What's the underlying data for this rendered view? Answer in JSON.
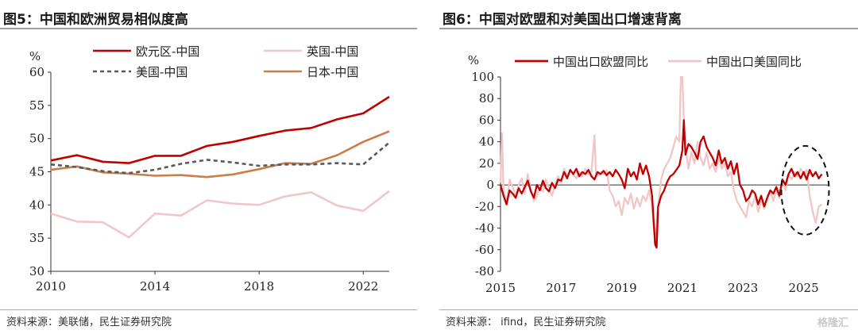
{
  "left": {
    "title": "图5：中国和欧洲贸易相似度高",
    "source": "资料来源：美联储，民生证券研究院"
  },
  "right": {
    "title": "图6：中国对欧盟和对美国出口增速背离",
    "source": "资料来源： ifind，民生证券研究院"
  },
  "watermark": "格隆汇",
  "chart_data": [
    {
      "type": "line",
      "ylabel": "%",
      "ylim": [
        30,
        60
      ],
      "yticks": [
        30,
        35,
        40,
        45,
        50,
        55,
        60
      ],
      "xlim": [
        2010,
        2023
      ],
      "xticks": [
        2010,
        2014,
        2018,
        2022
      ],
      "x": [
        2010,
        2011,
        2012,
        2013,
        2014,
        2015,
        2016,
        2017,
        2018,
        2019,
        2020,
        2021,
        2022,
        2023
      ],
      "legend": "top",
      "series": [
        {
          "name": "欧元区-中国",
          "color": "#c00000",
          "dash": false,
          "values": [
            46.7,
            47.5,
            46.5,
            46.3,
            47.4,
            47.4,
            48.9,
            49.5,
            50.4,
            51.2,
            51.6,
            52.9,
            53.8,
            56.3
          ]
        },
        {
          "name": "英国-中国",
          "color": "#f2c6c6",
          "dash": false,
          "values": [
            38.7,
            37.5,
            37.4,
            35.1,
            38.7,
            38.4,
            40.7,
            40.2,
            40.0,
            41.3,
            41.9,
            39.9,
            39.1,
            42.1
          ]
        },
        {
          "name": "美国-中国",
          "color": "#595959",
          "dash": true,
          "values": [
            46.1,
            45.7,
            45.1,
            44.8,
            45.3,
            46.2,
            46.8,
            46.4,
            45.9,
            46.1,
            46.1,
            46.3,
            46.1,
            49.4
          ]
        },
        {
          "name": "日本-中国",
          "color": "#c97e4a",
          "dash": false,
          "values": [
            45.3,
            45.8,
            44.9,
            44.7,
            44.4,
            44.5,
            44.2,
            44.6,
            45.4,
            46.3,
            46.2,
            47.5,
            49.5,
            51.1
          ]
        }
      ]
    },
    {
      "type": "line",
      "ylabel": "%",
      "ylim": [
        -80,
        100
      ],
      "yticks": [
        -80,
        -60,
        -40,
        -20,
        0,
        20,
        40,
        60,
        80,
        100
      ],
      "xlim": [
        2015,
        2025.85
      ],
      "xticks": [
        2015,
        2017,
        2019,
        2021,
        2023,
        2025
      ],
      "legend": "top",
      "annotation": "dashed-ellipse-around-2025",
      "series": [
        {
          "name": "中国出口欧盟同比",
          "color": "#c00000",
          "points": [
            [
              2015.0,
              0
            ],
            [
              2015.1,
              -10
            ],
            [
              2015.2,
              -18
            ],
            [
              2015.3,
              -5
            ],
            [
              2015.4,
              -8
            ],
            [
              2015.5,
              -12
            ],
            [
              2015.6,
              -3
            ],
            [
              2015.7,
              -8
            ],
            [
              2015.8,
              -2
            ],
            [
              2015.9,
              4
            ],
            [
              2016.0,
              -6
            ],
            [
              2016.1,
              -12
            ],
            [
              2016.2,
              0
            ],
            [
              2016.3,
              -5
            ],
            [
              2016.4,
              4
            ],
            [
              2016.5,
              -3
            ],
            [
              2016.6,
              -6
            ],
            [
              2016.7,
              2
            ],
            [
              2016.8,
              -3
            ],
            [
              2016.9,
              5
            ],
            [
              2017.0,
              4
            ],
            [
              2017.1,
              12
            ],
            [
              2017.2,
              6
            ],
            [
              2017.3,
              14
            ],
            [
              2017.4,
              10
            ],
            [
              2017.5,
              15
            ],
            [
              2017.6,
              8
            ],
            [
              2017.7,
              12
            ],
            [
              2017.8,
              10
            ],
            [
              2017.9,
              14
            ],
            [
              2018.0,
              8
            ],
            [
              2018.1,
              5
            ],
            [
              2018.2,
              12
            ],
            [
              2018.3,
              10
            ],
            [
              2018.4,
              13
            ],
            [
              2018.5,
              9
            ],
            [
              2018.6,
              12
            ],
            [
              2018.7,
              8
            ],
            [
              2018.8,
              14
            ],
            [
              2018.9,
              10
            ],
            [
              2019.0,
              5
            ],
            [
              2019.1,
              -3
            ],
            [
              2019.2,
              15
            ],
            [
              2019.3,
              8
            ],
            [
              2019.4,
              12
            ],
            [
              2019.5,
              5
            ],
            [
              2019.6,
              20
            ],
            [
              2019.7,
              10
            ],
            [
              2019.8,
              18
            ],
            [
              2019.9,
              8
            ],
            [
              2020.0,
              -10
            ],
            [
              2020.1,
              -55
            ],
            [
              2020.15,
              -58
            ],
            [
              2020.2,
              -20
            ],
            [
              2020.3,
              -10
            ],
            [
              2020.4,
              -5
            ],
            [
              2020.5,
              3
            ],
            [
              2020.6,
              8
            ],
            [
              2020.7,
              10
            ],
            [
              2020.8,
              14
            ],
            [
              2020.9,
              18
            ],
            [
              2021.0,
              32
            ],
            [
              2021.05,
              60
            ],
            [
              2021.1,
              28
            ],
            [
              2021.2,
              38
            ],
            [
              2021.3,
              35
            ],
            [
              2021.4,
              30
            ],
            [
              2021.5,
              24
            ],
            [
              2021.6,
              40
            ],
            [
              2021.7,
              45
            ],
            [
              2021.8,
              35
            ],
            [
              2021.9,
              30
            ],
            [
              2022.0,
              25
            ],
            [
              2022.1,
              18
            ],
            [
              2022.2,
              32
            ],
            [
              2022.3,
              20
            ],
            [
              2022.4,
              25
            ],
            [
              2022.5,
              15
            ],
            [
              2022.6,
              22
            ],
            [
              2022.7,
              10
            ],
            [
              2022.8,
              20
            ],
            [
              2022.9,
              0
            ],
            [
              2023.0,
              -5
            ],
            [
              2023.1,
              -15
            ],
            [
              2023.2,
              -12
            ],
            [
              2023.3,
              -5
            ],
            [
              2023.4,
              -8
            ],
            [
              2023.5,
              -18
            ],
            [
              2023.6,
              -10
            ],
            [
              2023.7,
              -20
            ],
            [
              2023.8,
              -12
            ],
            [
              2023.9,
              -5
            ],
            [
              2024.0,
              -8
            ],
            [
              2024.1,
              -2
            ],
            [
              2024.2,
              -10
            ],
            [
              2024.3,
              5
            ],
            [
              2024.4,
              0
            ],
            [
              2024.5,
              10
            ],
            [
              2024.6,
              15
            ],
            [
              2024.7,
              8
            ],
            [
              2024.8,
              12
            ],
            [
              2024.9,
              6
            ],
            [
              2025.0,
              12
            ],
            [
              2025.1,
              5
            ],
            [
              2025.2,
              14
            ],
            [
              2025.3,
              8
            ],
            [
              2025.4,
              12
            ],
            [
              2025.5,
              6
            ],
            [
              2025.6,
              10
            ]
          ]
        },
        {
          "name": "中国出口美国同比",
          "color": "#f2c6c6",
          "points": [
            [
              2015.0,
              2
            ],
            [
              2015.05,
              48
            ],
            [
              2015.1,
              -5
            ],
            [
              2015.2,
              -18
            ],
            [
              2015.3,
              5
            ],
            [
              2015.4,
              -2
            ],
            [
              2015.5,
              -10
            ],
            [
              2015.6,
              0
            ],
            [
              2015.7,
              6
            ],
            [
              2015.8,
              -8
            ],
            [
              2015.9,
              10
            ],
            [
              2016.0,
              -5
            ],
            [
              2016.1,
              -15
            ],
            [
              2016.2,
              -10
            ],
            [
              2016.3,
              -2
            ],
            [
              2016.4,
              -6
            ],
            [
              2016.5,
              5
            ],
            [
              2016.6,
              -4
            ],
            [
              2016.7,
              -10
            ],
            [
              2016.8,
              0
            ],
            [
              2016.9,
              8
            ],
            [
              2017.0,
              2
            ],
            [
              2017.1,
              15
            ],
            [
              2017.2,
              8
            ],
            [
              2017.3,
              14
            ],
            [
              2017.4,
              10
            ],
            [
              2017.5,
              6
            ],
            [
              2017.6,
              12
            ],
            [
              2017.7,
              8
            ],
            [
              2017.8,
              15
            ],
            [
              2017.9,
              10
            ],
            [
              2018.0,
              12
            ],
            [
              2018.1,
              46
            ],
            [
              2018.15,
              10
            ],
            [
              2018.2,
              8
            ],
            [
              2018.3,
              12
            ],
            [
              2018.4,
              10
            ],
            [
              2018.5,
              14
            ],
            [
              2018.6,
              -5
            ],
            [
              2018.7,
              -10
            ],
            [
              2018.8,
              -20
            ],
            [
              2018.9,
              -15
            ],
            [
              2019.0,
              -28
            ],
            [
              2019.1,
              -12
            ],
            [
              2019.2,
              -18
            ],
            [
              2019.3,
              -8
            ],
            [
              2019.4,
              -22
            ],
            [
              2019.5,
              -12
            ],
            [
              2019.6,
              -20
            ],
            [
              2019.7,
              -10
            ],
            [
              2019.8,
              -15
            ],
            [
              2019.9,
              -5
            ],
            [
              2020.0,
              -20
            ],
            [
              2020.05,
              -38
            ],
            [
              2020.1,
              -52
            ],
            [
              2020.15,
              -30
            ],
            [
              2020.2,
              -20
            ],
            [
              2020.3,
              5
            ],
            [
              2020.4,
              15
            ],
            [
              2020.5,
              20
            ],
            [
              2020.6,
              25
            ],
            [
              2020.7,
              35
            ],
            [
              2020.8,
              45
            ],
            [
              2020.9,
              40
            ],
            [
              2020.95,
              100
            ],
            [
              2021.0,
              100
            ],
            [
              2021.05,
              60
            ],
            [
              2021.1,
              35
            ],
            [
              2021.2,
              15
            ],
            [
              2021.3,
              30
            ],
            [
              2021.4,
              20
            ],
            [
              2021.5,
              40
            ],
            [
              2021.6,
              25
            ],
            [
              2021.7,
              18
            ],
            [
              2021.8,
              30
            ],
            [
              2021.9,
              15
            ],
            [
              2022.0,
              20
            ],
            [
              2022.1,
              12
            ],
            [
              2022.2,
              25
            ],
            [
              2022.3,
              15
            ],
            [
              2022.4,
              20
            ],
            [
              2022.5,
              8
            ],
            [
              2022.6,
              12
            ],
            [
              2022.7,
              -5
            ],
            [
              2022.8,
              -15
            ],
            [
              2022.9,
              -20
            ],
            [
              2023.0,
              -25
            ],
            [
              2023.1,
              -30
            ],
            [
              2023.2,
              -15
            ],
            [
              2023.3,
              -20
            ],
            [
              2023.4,
              -10
            ],
            [
              2023.5,
              -25
            ],
            [
              2023.6,
              -15
            ],
            [
              2023.7,
              -22
            ],
            [
              2023.8,
              -10
            ],
            [
              2023.9,
              -5
            ],
            [
              2024.0,
              -15
            ],
            [
              2024.1,
              -5
            ],
            [
              2024.2,
              -12
            ],
            [
              2024.3,
              5
            ],
            [
              2024.4,
              -5
            ],
            [
              2024.5,
              10
            ],
            [
              2024.6,
              5
            ],
            [
              2024.7,
              12
            ],
            [
              2024.8,
              8
            ],
            [
              2024.9,
              15
            ],
            [
              2025.0,
              10
            ],
            [
              2025.1,
              14
            ],
            [
              2025.2,
              -10
            ],
            [
              2025.3,
              -25
            ],
            [
              2025.4,
              -35
            ],
            [
              2025.5,
              -20
            ],
            [
              2025.6,
              -18
            ]
          ]
        }
      ]
    }
  ]
}
